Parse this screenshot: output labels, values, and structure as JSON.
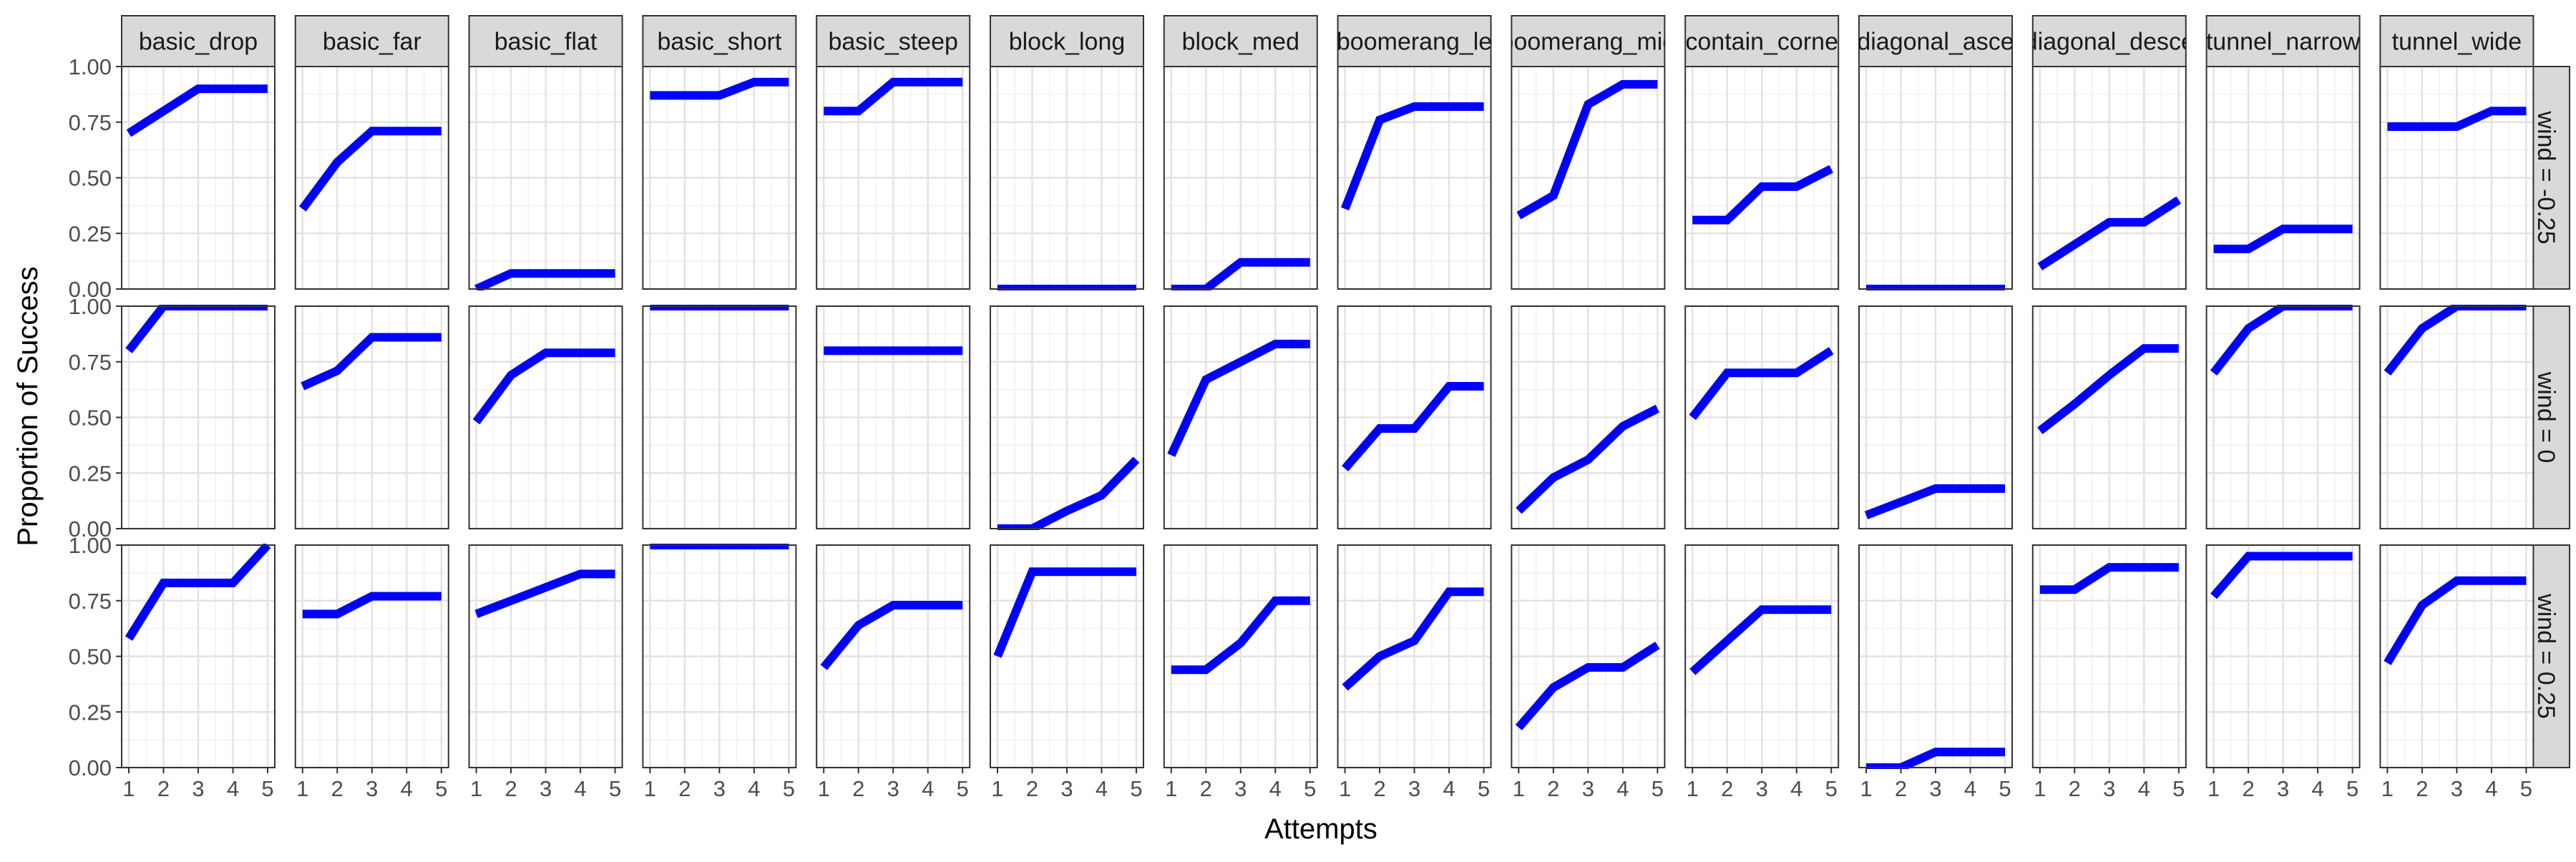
{
  "chart_data": {
    "type": "line",
    "layout": "facet-grid",
    "ylabel": "Proportion of Success",
    "xlabel": "Attempts",
    "x": [
      1,
      2,
      3,
      4,
      5
    ],
    "x_ticks": [
      "1",
      "2",
      "3",
      "4",
      "5"
    ],
    "ylim": [
      0,
      1
    ],
    "y_ticks": [
      "0.00",
      "0.25",
      "0.50",
      "0.75",
      "1.00"
    ],
    "grid": true,
    "line_color": "#0000ff",
    "columns": [
      "basic_drop",
      "basic_far",
      "basic_flat",
      "basic_short",
      "basic_steep",
      "block_long",
      "block_med",
      "boomerang_le",
      "boomerang_mid",
      "contain_corne",
      "diagonal_asce",
      "diagonal_desce",
      "tunnel_narrow",
      "tunnel_wide"
    ],
    "rows": [
      "wind = -0.25",
      "wind = 0",
      "wind = 0.25"
    ],
    "series": [
      {
        "row": 0,
        "col": 0,
        "values": [
          0.7,
          0.8,
          0.9,
          0.9,
          0.9
        ]
      },
      {
        "row": 0,
        "col": 1,
        "values": [
          0.36,
          0.57,
          0.71,
          0.71,
          0.71
        ]
      },
      {
        "row": 0,
        "col": 2,
        "values": [
          0.0,
          0.07,
          0.07,
          0.07,
          0.07
        ]
      },
      {
        "row": 0,
        "col": 3,
        "values": [
          0.87,
          0.87,
          0.87,
          0.93,
          0.93
        ]
      },
      {
        "row": 0,
        "col": 4,
        "values": [
          0.8,
          0.8,
          0.93,
          0.93,
          0.93
        ]
      },
      {
        "row": 0,
        "col": 5,
        "values": [
          0.0,
          0.0,
          0.0,
          0.0,
          0.0
        ]
      },
      {
        "row": 0,
        "col": 6,
        "values": [
          0.0,
          0.0,
          0.12,
          0.12,
          0.12
        ]
      },
      {
        "row": 0,
        "col": 7,
        "values": [
          0.36,
          0.76,
          0.82,
          0.82,
          0.82
        ]
      },
      {
        "row": 0,
        "col": 8,
        "values": [
          0.33,
          0.42,
          0.83,
          0.92,
          0.92
        ]
      },
      {
        "row": 0,
        "col": 9,
        "values": [
          0.31,
          0.31,
          0.46,
          0.46,
          0.54
        ]
      },
      {
        "row": 0,
        "col": 10,
        "values": [
          0.0,
          0.0,
          0.0,
          0.0,
          0.0
        ]
      },
      {
        "row": 0,
        "col": 11,
        "values": [
          0.1,
          0.2,
          0.3,
          0.3,
          0.4
        ]
      },
      {
        "row": 0,
        "col": 12,
        "values": [
          0.18,
          0.18,
          0.27,
          0.27,
          0.27
        ]
      },
      {
        "row": 0,
        "col": 13,
        "values": [
          0.73,
          0.73,
          0.73,
          0.8,
          0.8
        ]
      },
      {
        "row": 1,
        "col": 0,
        "values": [
          0.8,
          1.0,
          1.0,
          1.0,
          1.0
        ]
      },
      {
        "row": 1,
        "col": 1,
        "values": [
          0.64,
          0.71,
          0.86,
          0.86,
          0.86
        ]
      },
      {
        "row": 1,
        "col": 2,
        "values": [
          0.48,
          0.69,
          0.79,
          0.79,
          0.79
        ]
      },
      {
        "row": 1,
        "col": 3,
        "values": [
          1.0,
          1.0,
          1.0,
          1.0,
          1.0
        ]
      },
      {
        "row": 1,
        "col": 4,
        "values": [
          0.8,
          0.8,
          0.8,
          0.8,
          0.8
        ]
      },
      {
        "row": 1,
        "col": 5,
        "values": [
          0.0,
          0.0,
          0.08,
          0.15,
          0.31
        ]
      },
      {
        "row": 1,
        "col": 6,
        "values": [
          0.33,
          0.67,
          0.75,
          0.83,
          0.83
        ]
      },
      {
        "row": 1,
        "col": 7,
        "values": [
          0.27,
          0.45,
          0.45,
          0.64,
          0.64
        ]
      },
      {
        "row": 1,
        "col": 8,
        "values": [
          0.08,
          0.23,
          0.31,
          0.46,
          0.54
        ]
      },
      {
        "row": 1,
        "col": 9,
        "values": [
          0.5,
          0.7,
          0.7,
          0.7,
          0.8
        ]
      },
      {
        "row": 1,
        "col": 10,
        "values": [
          0.06,
          0.12,
          0.18,
          0.18,
          0.18
        ]
      },
      {
        "row": 1,
        "col": 11,
        "values": [
          0.44,
          0.56,
          0.69,
          0.81,
          0.81
        ]
      },
      {
        "row": 1,
        "col": 12,
        "values": [
          0.7,
          0.9,
          1.0,
          1.0,
          1.0
        ]
      },
      {
        "row": 1,
        "col": 13,
        "values": [
          0.7,
          0.9,
          1.0,
          1.0,
          1.0
        ]
      },
      {
        "row": 2,
        "col": 0,
        "values": [
          0.58,
          0.83,
          0.83,
          0.83,
          1.0
        ]
      },
      {
        "row": 2,
        "col": 1,
        "values": [
          0.69,
          0.69,
          0.77,
          0.77,
          0.77
        ]
      },
      {
        "row": 2,
        "col": 2,
        "values": [
          0.69,
          0.75,
          0.81,
          0.87,
          0.87
        ]
      },
      {
        "row": 2,
        "col": 3,
        "values": [
          1.0,
          1.0,
          1.0,
          1.0,
          1.0
        ]
      },
      {
        "row": 2,
        "col": 4,
        "values": [
          0.45,
          0.64,
          0.73,
          0.73,
          0.73
        ]
      },
      {
        "row": 2,
        "col": 5,
        "values": [
          0.5,
          0.88,
          0.88,
          0.88,
          0.88
        ]
      },
      {
        "row": 2,
        "col": 6,
        "values": [
          0.44,
          0.44,
          0.56,
          0.75,
          0.75
        ]
      },
      {
        "row": 2,
        "col": 7,
        "values": [
          0.36,
          0.5,
          0.57,
          0.79,
          0.79
        ]
      },
      {
        "row": 2,
        "col": 8,
        "values": [
          0.18,
          0.36,
          0.45,
          0.45,
          0.55
        ]
      },
      {
        "row": 2,
        "col": 9,
        "values": [
          0.43,
          0.57,
          0.71,
          0.71,
          0.71
        ]
      },
      {
        "row": 2,
        "col": 10,
        "values": [
          0.0,
          0.0,
          0.07,
          0.07,
          0.07
        ]
      },
      {
        "row": 2,
        "col": 11,
        "values": [
          0.8,
          0.8,
          0.9,
          0.9,
          0.9
        ]
      },
      {
        "row": 2,
        "col": 12,
        "values": [
          0.77,
          0.95,
          0.95,
          0.95,
          0.95
        ]
      },
      {
        "row": 2,
        "col": 13,
        "values": [
          0.47,
          0.73,
          0.84,
          0.84,
          0.84
        ]
      }
    ]
  }
}
